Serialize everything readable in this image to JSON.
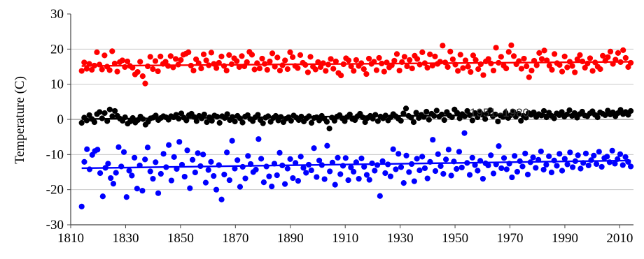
{
  "chart_data": {
    "type": "scatter",
    "title": "",
    "xlabel": "",
    "ylabel": "Temperature (C)",
    "xlim": [
      1810,
      2015
    ],
    "ylim": [
      -30,
      30
    ],
    "xticks": [
      1810,
      1830,
      1850,
      1870,
      1890,
      1910,
      1930,
      1950,
      1970,
      1990,
      2010
    ],
    "yticks": [
      -30,
      -20,
      -10,
      0,
      10,
      20,
      30
    ],
    "grid": "horizontal",
    "legend": "none",
    "annotation": "1951–1980",
    "reference_line_y": 0,
    "x_start": 1814,
    "x_end": 2014,
    "series": [
      {
        "color": "#ff0000",
        "trend": [
          15.2,
          16.4
        ],
        "values": [
          13.8,
          16.2,
          14.4,
          15.8,
          14.1,
          15.3,
          19.1,
          15.6,
          14.2,
          18.2,
          15.0,
          14.0,
          19.4,
          15.9,
          13.6,
          16.3,
          16.8,
          14.9,
          16.5,
          15.2,
          14.7,
          12.8,
          13.5,
          16.4,
          12.3,
          10.2,
          15.1,
          17.8,
          14.3,
          16.6,
          13.7,
          17.9,
          15.8,
          16.4,
          15.2,
          18.0,
          14.8,
          17.2,
          15.6,
          16.9,
          18.4,
          18.7,
          19.1,
          15.3,
          13.9,
          17.1,
          16.0,
          14.5,
          18.5,
          16.8,
          15.4,
          19.0,
          15.8,
          14.6,
          16.1,
          17.9,
          15.2,
          13.9,
          18.3,
          15.7,
          17.4,
          16.6,
          14.9,
          18.0,
          15.1,
          16.3,
          19.2,
          18.4,
          14.2,
          16.0,
          14.5,
          17.3,
          15.8,
          14.1,
          16.5,
          18.8,
          15.0,
          17.6,
          13.9,
          15.4,
          16.8,
          14.3,
          19.1,
          17.7,
          15.2,
          14.6,
          18.3,
          16.1,
          15.5,
          13.4,
          17.8,
          15.0,
          14.2,
          16.3,
          14.9,
          16.0,
          13.8,
          15.6,
          17.2,
          14.4,
          16.5,
          13.2,
          12.5,
          15.7,
          17.4,
          16.8,
          15.1,
          13.8,
          16.9,
          15.2,
          16.0,
          14.3,
          12.9,
          17.3,
          15.8,
          16.4,
          14.0,
          17.5,
          15.9,
          13.6,
          16.2,
          14.8,
          15.4,
          16.7,
          18.6,
          13.9,
          16.3,
          17.8,
          15.1,
          16.9,
          14.5,
          18.1,
          17.2,
          15.6,
          19.1,
          16.0,
          14.7,
          18.5,
          15.3,
          17.9,
          15.8,
          16.4,
          21.0,
          16.2,
          14.9,
          19.3,
          17.1,
          15.6,
          13.8,
          18.4,
          14.6,
          16.8,
          15.0,
          13.5,
          18.2,
          16.9,
          14.3,
          15.7,
          12.6,
          16.5,
          17.2,
          15.9,
          13.9,
          20.4,
          16.1,
          17.8,
          15.3,
          14.5,
          19.2,
          21.1,
          18.0,
          15.7,
          16.6,
          14.4,
          17.3,
          15.1,
          12.0,
          13.9,
          16.7,
          15.4,
          18.9,
          17.2,
          19.6,
          16.8,
          15.3,
          14.1,
          18.6,
          16.0,
          15.5,
          13.6,
          17.9,
          14.8,
          16.4,
          15.2,
          13.4,
          17.1,
          18.3,
          16.5,
          14.7,
          15.9,
          17.4,
          13.8,
          16.2,
          15.0,
          14.3,
          18.1,
          16.7,
          17.7,
          19.3,
          15.8,
          17.0,
          18.9,
          16.3,
          19.7,
          17.5,
          14.9,
          16.1
        ]
      },
      {
        "color": "#000000",
        "trend": [
          0.1,
          1.6
        ],
        "values": [
          -1.0,
          0.5,
          -0.3,
          1.2,
          0.1,
          -0.8,
          1.5,
          2.1,
          0.3,
          1.8,
          -0.5,
          2.8,
          0.9,
          2.4,
          1.0,
          0.2,
          -0.4,
          0.6,
          -1.2,
          -0.6,
          0.4,
          -0.9,
          -0.2,
          0.8,
          0.1,
          -1.5,
          -0.7,
          0.3,
          0.5,
          1.1,
          -0.2,
          0.4,
          0.9,
          0.6,
          -0.1,
          0.9,
          0.6,
          1.3,
          0.2,
          1.7,
          0.5,
          -0.3,
          1.2,
          1.6,
          0.7,
          -0.5,
          1.0,
          0.3,
          1.4,
          -0.8,
          0.6,
          -0.4,
          1.1,
          0.8,
          -1.0,
          0.9,
          0.4,
          1.5,
          -0.2,
          0.7,
          -0.6,
          1.0,
          0.3,
          -0.9,
          0.8,
          1.2,
          0.1,
          -0.5,
          0.6,
          1.3,
          -0.2,
          -1.1,
          0.5,
          0.9,
          -0.7,
          0.4,
          1.0,
          -0.3,
          0.7,
          -0.8,
          0.2,
          0.6,
          -0.4,
          1.1,
          0.5,
          -0.2,
          0.8,
          -0.6,
          0.3,
          0.9,
          -1.0,
          0.4,
          0.6,
          -0.3,
          1.0,
          0.2,
          -0.7,
          -2.6,
          0.5,
          -0.4,
          0.8,
          1.2,
          0.3,
          -0.5,
          0.7,
          1.4,
          0.1,
          -0.2,
          0.9,
          1.6,
          0.6,
          -0.8,
          0.4,
          1.0,
          0.2,
          1.3,
          -0.5,
          0.8,
          0.3,
          1.1,
          -0.3,
          0.6,
          1.5,
          0.9,
          0.2,
          -0.4,
          1.7,
          3.1,
          1.0,
          0.5,
          -0.8,
          1.9,
          0.4,
          1.3,
          0.7,
          2.2,
          -0.1,
          1.6,
          1.0,
          2.5,
          0.8,
          1.4,
          -0.2,
          2.1,
          1.1,
          0.6,
          2.8,
          1.9,
          0.3,
          1.5,
          0.9,
          2.4,
          1.2,
          -0.3,
          1.8,
          0.6,
          2.0,
          1.3,
          0.1,
          1.7,
          2.6,
          0.9,
          1.4,
          -0.6,
          1.1,
          0.7,
          1.9,
          0.4,
          1.2,
          2.2,
          0.8,
          1.6,
          -0.4,
          1.0,
          0.5,
          1.8,
          1.3,
          2.0,
          0.7,
          1.5,
          1.1,
          2.4,
          0.6,
          1.9,
          1.0,
          0.3,
          1.7,
          1.2,
          2.1,
          0.8,
          1.4,
          2.6,
          1.0,
          1.8,
          0.5,
          1.5,
          2.2,
          1.1,
          0.9,
          1.7,
          2.3,
          1.3,
          0.6,
          2.0,
          1.6,
          1.2,
          2.5,
          1.4,
          2.0,
          0.9,
          1.8,
          2.7,
          1.5,
          2.1,
          1.3,
          2.4
        ]
      },
      {
        "color": "#0000ff",
        "trend": [
          -13.9,
          -11.7
        ],
        "values": [
          -24.8,
          -12.1,
          -8.5,
          -14.2,
          -10.1,
          -9.0,
          -8.6,
          -15.3,
          -21.9,
          -13.8,
          -12.6,
          -16.7,
          -18.3,
          -15.2,
          -7.9,
          -13.4,
          -9.3,
          -22.1,
          -14.6,
          -16.0,
          -10.9,
          -19.7,
          -13.1,
          -20.3,
          -11.4,
          -8.0,
          -14.8,
          -16.9,
          -12.2,
          -21.0,
          -15.5,
          -9.8,
          -13.6,
          -7.3,
          -17.4,
          -10.7,
          -14.1,
          -6.4,
          -12.9,
          -16.3,
          -8.8,
          -19.6,
          -11.5,
          -15.1,
          -9.6,
          -13.3,
          -10.0,
          -18.0,
          -14.4,
          -12.1,
          -16.1,
          -20.0,
          -13.0,
          -22.8,
          -15.7,
          -9.4,
          -17.3,
          -6.1,
          -14.0,
          -11.6,
          -19.2,
          -13.5,
          -16.8,
          -10.4,
          -12.7,
          -15.0,
          -14.3,
          -5.6,
          -11.2,
          -17.9,
          -13.4,
          -16.2,
          -19.1,
          -12.6,
          -15.9,
          -9.5,
          -13.1,
          -18.4,
          -14.0,
          -11.3,
          -16.7,
          -12.4,
          -17.5,
          -10.6,
          -13.8,
          -15.2,
          -12.9,
          -14.5,
          -8.2,
          -16.4,
          -11.7,
          -13.0,
          -17.0,
          -7.5,
          -14.8,
          -12.3,
          -18.6,
          -10.9,
          -15.6,
          -13.2,
          -11.0,
          -17.3,
          -13.7,
          -14.9,
          -12.2,
          -16.9,
          -11.1,
          -13.5,
          -15.8,
          -17.2,
          -12.5,
          -14.6,
          -13.0,
          -21.8,
          -11.9,
          -15.3,
          -12.8,
          -16.2,
          -8.5,
          -14.2,
          -9.8,
          -13.6,
          -18.1,
          -10.3,
          -15.0,
          -12.7,
          -17.6,
          -11.2,
          -14.5,
          -10.6,
          -13.9,
          -16.8,
          -12.1,
          -5.8,
          -14.7,
          -9.9,
          -13.3,
          -15.5,
          -11.4,
          -8.6,
          -16.0,
          -12.0,
          -14.1,
          -9.2,
          -13.7,
          -3.9,
          -12.4,
          -15.8,
          -10.9,
          -13.0,
          -14.6,
          -11.8,
          -16.9,
          -12.5,
          -13.1,
          -10.2,
          -15.4,
          -12.8,
          -7.6,
          -13.9,
          -11.0,
          -14.2,
          -12.6,
          -16.5,
          -10.4,
          -14.9,
          -11.9,
          -13.4,
          -9.7,
          -15.7,
          -12.2,
          -10.8,
          -13.8,
          -11.5,
          -9.1,
          -14.3,
          -12.9,
          -10.5,
          -15.1,
          -11.7,
          -13.2,
          -9.8,
          -14.6,
          -11.2,
          -12.8,
          -9.4,
          -13.6,
          -11.9,
          -10.2,
          -14.0,
          -12.4,
          -9.7,
          -13.1,
          -11.6,
          -10.3,
          -12.7,
          -9.2,
          -13.5,
          -11.0,
          -10.6,
          -12.2,
          -8.9,
          -12.6,
          -11.3,
          -9.9,
          -13.0,
          -10.7,
          -12.1,
          -13.4
        ]
      }
    ]
  }
}
